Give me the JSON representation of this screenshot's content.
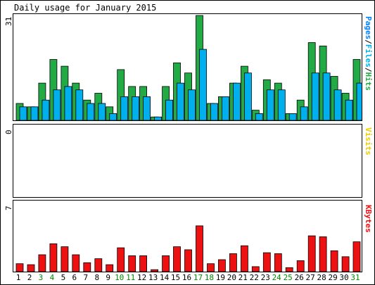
{
  "chart_data": {
    "type": "bar",
    "title": "Daily usage for January 2015",
    "days": [
      "1",
      "2",
      "3",
      "4",
      "5",
      "6",
      "7",
      "8",
      "9",
      "10",
      "11",
      "12",
      "13",
      "14",
      "15",
      "16",
      "17",
      "18",
      "19",
      "20",
      "21",
      "22",
      "23",
      "24",
      "25",
      "26",
      "27",
      "28",
      "29",
      "30",
      "31"
    ],
    "weekend_days": [
      "3",
      "4",
      "10",
      "11",
      "17",
      "18",
      "24",
      "25",
      "31"
    ],
    "panels": [
      {
        "name": "hits_pages_files",
        "ymax_label": "31",
        "ylim": [
          0,
          31
        ],
        "legend": [
          "Pages",
          "/",
          "Files",
          "/",
          "Hits"
        ],
        "series": [
          {
            "name": "Hits",
            "color": "#22aa44",
            "values": [
              5,
              4,
              11,
              18,
              16,
              11,
              6,
              8,
              4,
              15,
              10,
              10,
              1,
              10,
              17,
              14,
              31,
              5,
              7,
              11,
              16,
              3,
              12,
              11,
              2,
              6,
              23,
              22,
              13,
              8,
              18
            ]
          },
          {
            "name": "Files",
            "color": "#00b0ee",
            "values": [
              4,
              4,
              6,
              9,
              10,
              9,
              5,
              5,
              2,
              7,
              7,
              7,
              1,
              6,
              11,
              9,
              21,
              5,
              7,
              11,
              14,
              2,
              9,
              9,
              2,
              4,
              14,
              14,
              9,
              6,
              11
            ]
          }
        ]
      },
      {
        "name": "visits",
        "ymax_label": "0",
        "ylim": [
          0,
          1
        ],
        "legend": [
          "Visits"
        ],
        "series": [
          {
            "name": "Visits",
            "color": "#eecc00",
            "values": [
              0,
              0,
              0,
              0,
              0,
              0,
              0,
              0,
              0,
              0,
              0,
              0,
              0,
              0,
              0,
              0,
              0,
              0,
              0,
              0,
              0,
              0,
              0,
              0,
              0,
              0,
              0,
              0,
              0,
              0,
              0
            ]
          }
        ]
      },
      {
        "name": "kbytes",
        "ymax_label": "7",
        "ylim": [
          0,
          7
        ],
        "legend": [
          "KBytes"
        ],
        "series": [
          {
            "name": "KBytes",
            "color": "#ee1111",
            "values": [
              0.8,
              0.7,
              1.7,
              2.8,
              2.5,
              1.7,
              0.9,
              1.3,
              0.7,
              2.4,
              1.6,
              1.6,
              0.2,
              1.6,
              2.5,
              2.2,
              4.6,
              0.8,
              1.2,
              1.8,
              2.6,
              0.5,
              1.9,
              1.8,
              0.4,
              1.1,
              3.6,
              3.5,
              2.1,
              1.5,
              3.0
            ]
          }
        ]
      }
    ],
    "colors": {
      "hits": "#22aa44",
      "files": "#00b0ee",
      "pages": "#0080ff",
      "visits": "#eecc00",
      "kbytes": "#ee1111",
      "weekday_label": "#000000",
      "weekend_label": "#008800"
    }
  }
}
